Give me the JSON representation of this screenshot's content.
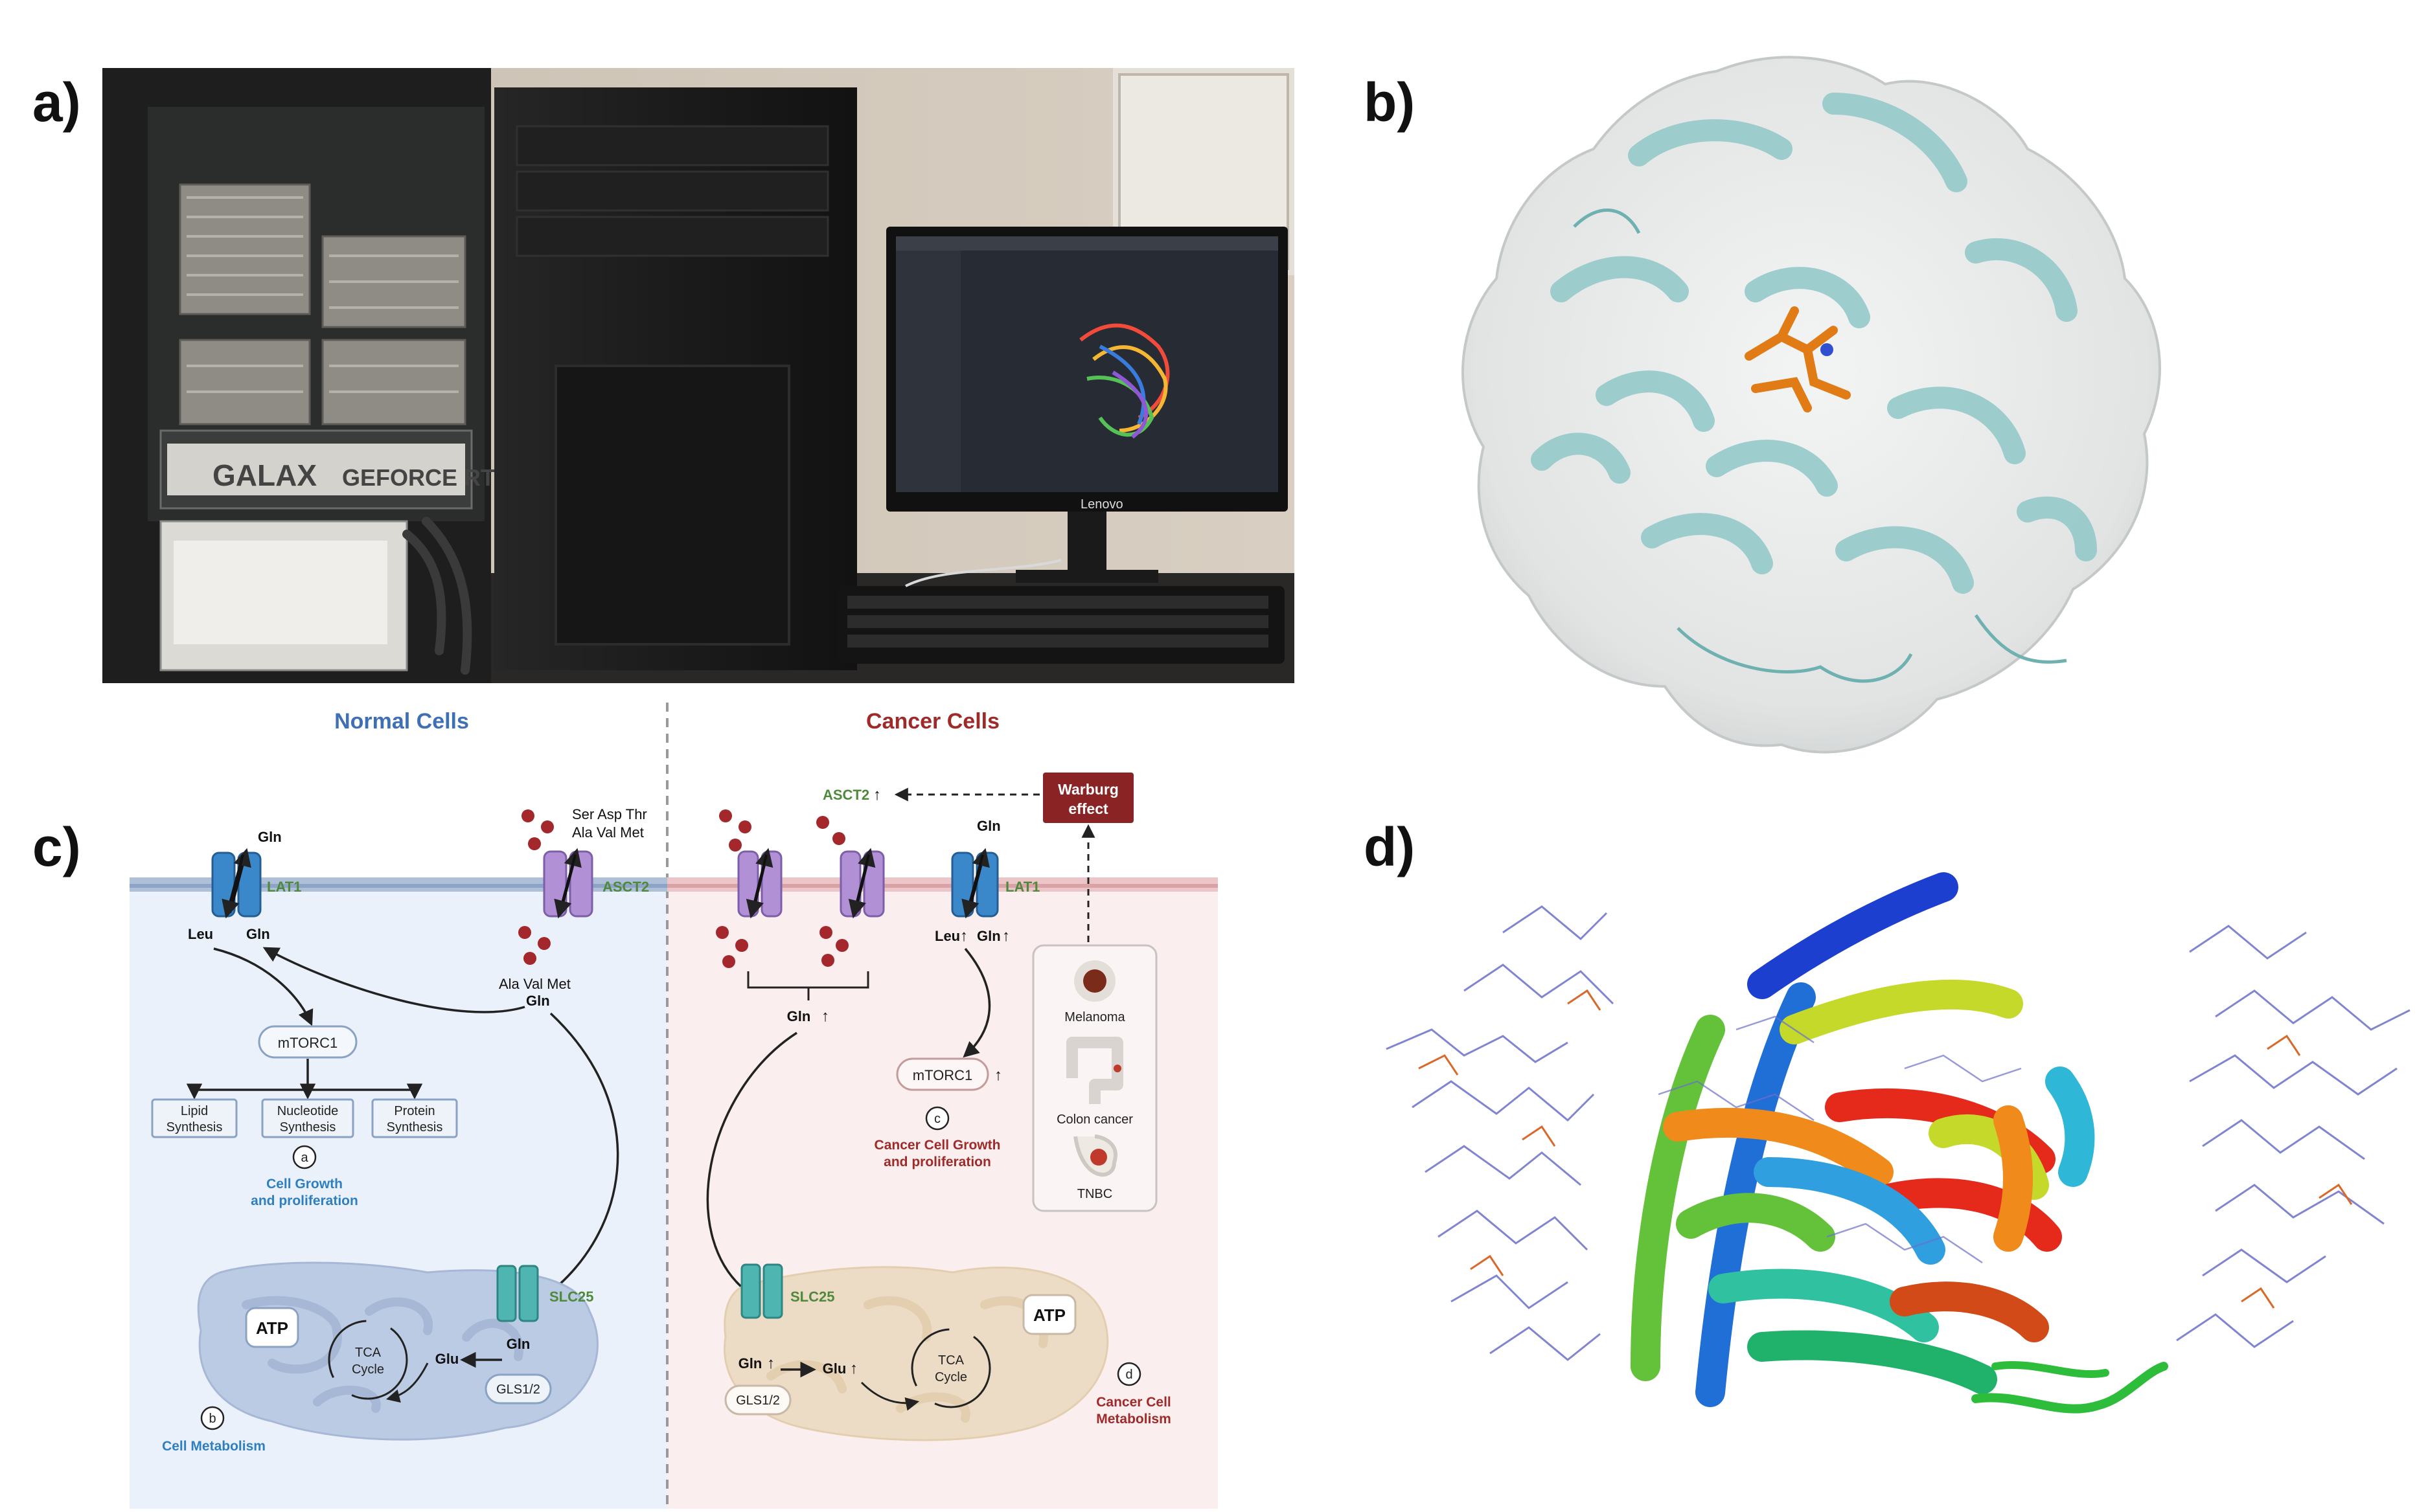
{
  "panel_labels": {
    "a": "a)",
    "b": "b)",
    "c": "c)",
    "d": "d)"
  },
  "colors": {
    "normal_title": "#3f6fb5",
    "cancer_title": "#9e2a2a",
    "green_label": "#4f8a3c",
    "normal_bg": "#eaf1fa",
    "cancer_bg": "#fbeeee",
    "warburg_box": "#8a2424",
    "lat1": "#3a87c9",
    "asct2": "#b190d6",
    "slc25": "#4eb5b0",
    "bead": "#a3272b",
    "mito_normal": "#bccbe4",
    "mito_cancer": "#ecdcc5",
    "blue_text": "#2f7fc0"
  },
  "diagram": {
    "normal_title": "Normal Cells",
    "cancer_title": "Cancer Cells",
    "normal": {
      "gln_top": "Gln",
      "lat1": "LAT1",
      "leu": "Leu",
      "gln_below": "Gln",
      "aa_top_1": "Ser Asp Thr",
      "aa_top_2": "Ala Val Met",
      "asct2": "ASCT2",
      "aa_bottom": "Ala Val Met",
      "gln_asct2": "Gln",
      "mtorc1": "mTORC1",
      "lipid_1": "Lipid",
      "lipid_2": "Synthesis",
      "nuc_1": "Nucleotide",
      "nuc_2": "Synthesis",
      "prot_1": "Protein",
      "prot_2": "Synthesis",
      "badge_a": "a",
      "growth_1": "Cell Growth",
      "growth_2": "and proliferation",
      "slc25": "SLC25",
      "gln_mito": "Gln",
      "glu": "Glu",
      "gls": "GLS1/2",
      "atp": "ATP",
      "tca_1": "TCA",
      "tca_2": "Cycle",
      "badge_b": "b",
      "metabolism": "Cell Metabolism"
    },
    "cancer": {
      "asct2_up": "ASCT2",
      "warburg_1": "Warburg",
      "warburg_2": "effect",
      "gln_top": "Gln",
      "lat1": "LAT1",
      "leu_up": "Leu",
      "gln_up": "Gln",
      "gln_bracket": "Gln",
      "mtorc1": "mTORC1",
      "badge_c": "c",
      "growth_1": "Cancer Cell Growth",
      "growth_2": "and proliferation",
      "melanoma": "Melanoma",
      "colon": "Colon cancer",
      "tnbc": "TNBC",
      "slc25": "SLC25",
      "gln_mito": "Gln",
      "glu": "Glu",
      "gls": "GLS1/2",
      "atp": "ATP",
      "tca_1": "TCA",
      "tca_2": "Cycle",
      "badge_d": "d",
      "metabolism_1": "Cancer Cell",
      "metabolism_2": "Metabolism"
    }
  },
  "photo": {
    "gpu_brand": "GALAX",
    "gpu_model": "GEFORCE RTX",
    "monitor_brand": "Lenovo"
  }
}
